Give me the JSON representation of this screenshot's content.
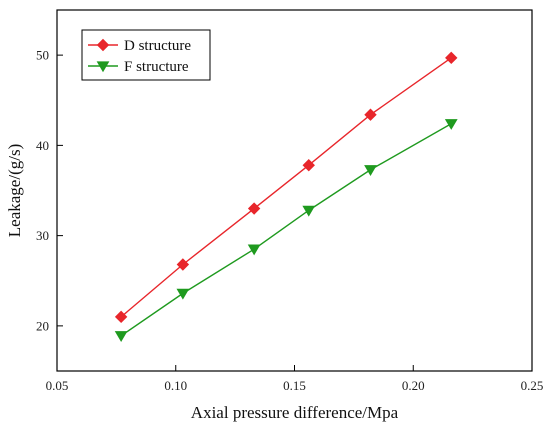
{
  "chart_data": {
    "type": "line",
    "xlabel": "Axial pressure difference/Mpa",
    "ylabel": "Leakage/(g/s)",
    "xlim": [
      0.05,
      0.25
    ],
    "ylim": [
      15,
      55
    ],
    "xticks": [
      0.05,
      0.1,
      0.15,
      0.2,
      0.25
    ],
    "xtick_labels": [
      "0.05",
      "0.10",
      "0.15",
      "0.20",
      "0.25"
    ],
    "yticks": [
      20,
      30,
      40,
      50
    ],
    "ytick_labels": [
      "20",
      "30",
      "40",
      "50"
    ],
    "grid": false,
    "legend_position": "top-left",
    "x": [
      0.077,
      0.103,
      0.133,
      0.156,
      0.182,
      0.216
    ],
    "series": [
      {
        "name": "D structure",
        "color": "#e8262b",
        "marker": "diamond",
        "values": [
          21.0,
          26.8,
          33.0,
          37.8,
          43.4,
          49.7
        ]
      },
      {
        "name": "F structure",
        "color": "#1f9a1f",
        "marker": "triangle-down",
        "values": [
          18.9,
          23.6,
          28.5,
          32.8,
          37.3,
          42.4
        ]
      }
    ]
  }
}
